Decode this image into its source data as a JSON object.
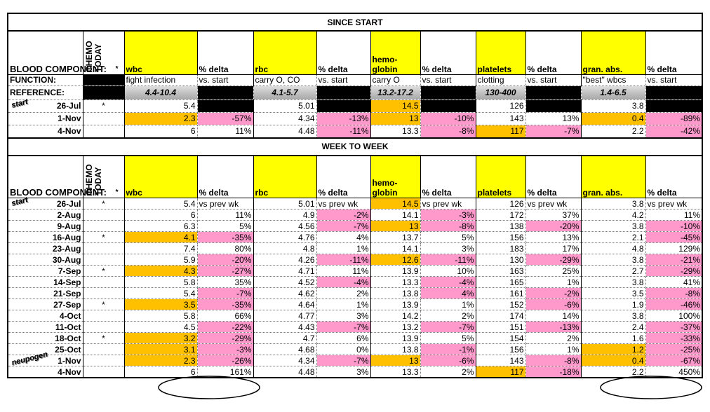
{
  "since_start": {
    "title": "SINCE START",
    "header": {
      "label": "BLOOD COMPONENT:",
      "chemo": "CHEMO TODAY",
      "chemo_mark": "*",
      "columns": [
        "wbc",
        "% delta",
        "rbc",
        "% delta",
        "hemo-\nglobin",
        "% delta",
        "platelets",
        "% delta",
        "gran. abs.",
        "% delta"
      ]
    },
    "function_row": {
      "label": "FUNCTION:",
      "cells": [
        "fight infection",
        "vs. start",
        "carry O, CO",
        "vs. start",
        "carry O",
        "vs. start",
        "clotting",
        "vs. start",
        "\"best\" wbcs",
        "vs. start"
      ]
    },
    "reference_row": {
      "label": "REFERENCE:",
      "cells": [
        "4.4-10.4",
        null,
        "4.1-5.7",
        null,
        "13.2-17.2",
        null,
        "130-400",
        null,
        "1.4-6.5",
        null
      ]
    },
    "rows": [
      {
        "date": "26-Jul",
        "note": "start",
        "chemo": "*",
        "cells": [
          "5.4",
          null,
          "5.01",
          null,
          "14.5",
          null,
          "126",
          null,
          "3.8",
          null
        ]
      },
      {
        "date": "1-Nov",
        "chemo": null,
        "cells": [
          "2.3",
          "-57%",
          "4.34",
          "-13%",
          "13",
          "-10%",
          "143",
          "13%",
          "0.4",
          "-89%"
        ]
      },
      {
        "date": "4-Nov",
        "chemo": null,
        "cells": [
          "6",
          "11%",
          "4.48",
          "-11%",
          "13.3",
          "-8%",
          "117",
          "-7%",
          "2.2",
          "-42%"
        ]
      }
    ]
  },
  "week_to_week": {
    "title": "WEEK TO WEEK",
    "header": {
      "label": "BLOOD COMPONENT:",
      "chemo": "CHEMO TODAY",
      "chemo_mark": "*",
      "columns": [
        "wbc",
        "% delta",
        "rbc",
        "% delta",
        "hemo-\nglobin",
        "% delta",
        "platelets",
        "% delta",
        "gran. abs.",
        "% delta"
      ]
    },
    "rows": [
      {
        "date": "26-Jul",
        "note": "start",
        "chemo": "*",
        "cells": [
          "5.4",
          "vs prev wk",
          "5.01",
          "vs prev wk",
          "14.5",
          "vs prev wk",
          "126",
          "vs prev wk",
          "3.8",
          "vs prev wk"
        ]
      },
      {
        "date": "2-Aug",
        "chemo": null,
        "cells": [
          "6",
          "11%",
          "4.9",
          "-2%",
          "14.1",
          "-3%",
          "172",
          "37%",
          "4.2",
          "11%"
        ]
      },
      {
        "date": "9-Aug",
        "chemo": null,
        "cells": [
          "6.3",
          "5%",
          "4.56",
          "-7%",
          "13",
          "-8%",
          "138",
          "-20%",
          "3.8",
          "-10%"
        ]
      },
      {
        "date": "16-Aug",
        "chemo": "*",
        "cells": [
          "4.1",
          "-35%",
          "4.76",
          "4%",
          "13.7",
          "5%",
          "156",
          "13%",
          "2.1",
          "-45%"
        ]
      },
      {
        "date": "23-Aug",
        "chemo": null,
        "cells": [
          "7.4",
          "80%",
          "4.8",
          "1%",
          "14.1",
          "3%",
          "183",
          "17%",
          "4.8",
          "129%"
        ]
      },
      {
        "date": "30-Aug",
        "chemo": null,
        "cells": [
          "5.9",
          "-20%",
          "4.26",
          "-11%",
          "12.6",
          "-11%",
          "130",
          "-29%",
          "3.8",
          "-21%"
        ]
      },
      {
        "date": "7-Sep",
        "chemo": "*",
        "cells": [
          "4.3",
          "-27%",
          "4.71",
          "11%",
          "13.9",
          "10%",
          "163",
          "25%",
          "2.7",
          "-29%"
        ]
      },
      {
        "date": "14-Sep",
        "chemo": null,
        "cells": [
          "5.8",
          "35%",
          "4.52",
          "-4%",
          "13.3",
          "-4%",
          "165",
          "1%",
          "3.8",
          "41%"
        ]
      },
      {
        "date": "21-Sep",
        "chemo": null,
        "cells": [
          "5.4",
          "-7%",
          "4.62",
          "2%",
          "13.8",
          "4%",
          "161",
          "-2%",
          "3.5",
          "-8%"
        ]
      },
      {
        "date": "27-Sep",
        "chemo": "*",
        "cells": [
          "3.5",
          "-35%",
          "4.64",
          "1%",
          "13.9",
          "1%",
          "152",
          "-6%",
          "1.9",
          "-46%"
        ]
      },
      {
        "date": "4-Oct",
        "chemo": null,
        "cells": [
          "5.8",
          "66%",
          "4.77",
          "3%",
          "14.2",
          "2%",
          "174",
          "14%",
          "3.8",
          "100%"
        ]
      },
      {
        "date": "11-Oct",
        "chemo": null,
        "cells": [
          "4.5",
          "-22%",
          "4.43",
          "-7%",
          "13.2",
          "-7%",
          "151",
          "-13%",
          "2.4",
          "-37%"
        ]
      },
      {
        "date": "18-Oct",
        "chemo": "*",
        "cells": [
          "3.2",
          "-29%",
          "4.7",
          "6%",
          "13.9",
          "5%",
          "154",
          "2%",
          "1.6",
          "-33%"
        ]
      },
      {
        "date": "25-Oct",
        "chemo": null,
        "cells": [
          "3.1",
          "-3%",
          "4.68",
          "0%",
          "13.8",
          "-1%",
          "156",
          "1%",
          "1.2",
          "-25%"
        ]
      },
      {
        "date": "1-Nov",
        "note": "neupogen",
        "chemo": null,
        "cells": [
          "2.3",
          "-26%",
          "4.34",
          "-7%",
          "13",
          "-6%",
          "143",
          "-8%",
          "0.4",
          "-67%"
        ]
      },
      {
        "date": "4-Nov",
        "chemo": null,
        "cells": [
          "6",
          "161%",
          "4.48",
          "3%",
          "13.3",
          "2%",
          "117",
          "-18%",
          "2.2",
          "450%"
        ]
      }
    ]
  }
}
